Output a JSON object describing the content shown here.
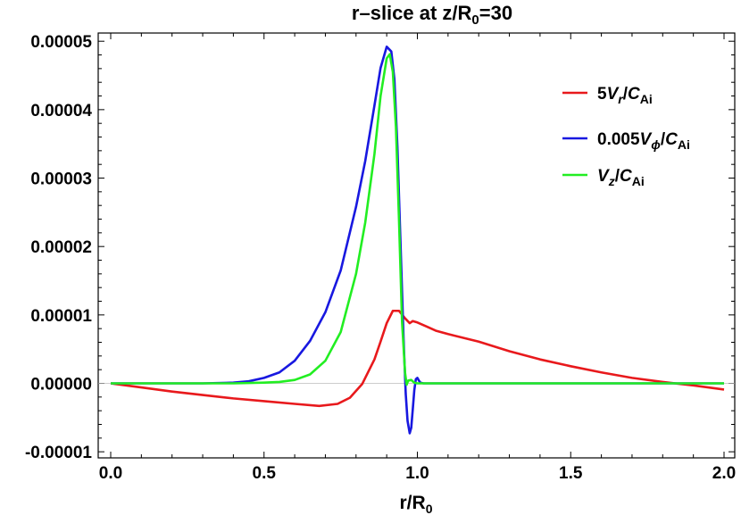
{
  "chart_data": {
    "type": "line",
    "title": "r–slice at z/R",
    "title_sub": "0",
    "title_suffix": "=30",
    "xlabel": "r/R",
    "xlabel_sub": "0",
    "ylabel": "",
    "xlim": [
      0.0,
      2.0
    ],
    "ylim": [
      -1e-05,
      5.2e-05
    ],
    "x_ticks": [
      0.0,
      0.5,
      1.0,
      1.5,
      2.0
    ],
    "x_tick_labels": [
      "0.0",
      "0.5",
      "1.0",
      "1.5",
      "2.0"
    ],
    "y_ticks": [
      -1e-05,
      0.0,
      1e-05,
      2e-05,
      3e-05,
      4e-05,
      5e-05
    ],
    "y_tick_labels": [
      "-0.00001",
      "0.00000",
      "0.00001",
      "0.00002",
      "0.00003",
      "0.00004",
      "0.00005"
    ],
    "grid": false,
    "legend_position": "top-right",
    "series": [
      {
        "name": "5V_r/C_Ai",
        "label_parts": {
          "coef": "5",
          "var": "V",
          "sub": "r",
          "div": "/",
          "den": "C",
          "den_sub": "Ai"
        },
        "color": "#e8191c",
        "x": [
          0.0,
          0.1,
          0.2,
          0.3,
          0.4,
          0.5,
          0.6,
          0.68,
          0.74,
          0.78,
          0.82,
          0.86,
          0.88,
          0.9,
          0.92,
          0.94,
          0.96,
          0.975,
          0.985,
          1.0,
          1.03,
          1.06,
          1.1,
          1.2,
          1.3,
          1.4,
          1.5,
          1.6,
          1.7,
          1.8,
          1.9,
          2.0
        ],
        "y": [
          0.0,
          -6e-07,
          -1.2e-06,
          -1.7e-06,
          -2.2e-06,
          -2.6e-06,
          -3e-06,
          -3.3e-06,
          -3e-06,
          -2.1e-06,
          -1e-07,
          3.5e-06,
          6.1e-06,
          8.8e-06,
          1.06e-05,
          1.06e-05,
          9.5e-06,
          8.8e-06,
          9.1e-06,
          8.9e-06,
          8.3e-06,
          7.7e-06,
          7.2e-06,
          6.1e-06,
          4.7e-06,
          3.5e-06,
          2.5e-06,
          1.6e-06,
          8e-07,
          2e-07,
          -3e-07,
          -9e-07
        ]
      },
      {
        "name": "0.005V_phi/C_Ai",
        "label_parts": {
          "coef": "0.005",
          "var": "V",
          "sub": "ϕ",
          "div": "/",
          "den": "C",
          "den_sub": "Ai"
        },
        "color": "#1818e0",
        "x": [
          0.0,
          0.2,
          0.3,
          0.4,
          0.45,
          0.5,
          0.55,
          0.6,
          0.65,
          0.7,
          0.75,
          0.8,
          0.83,
          0.86,
          0.88,
          0.9,
          0.915,
          0.925,
          0.935,
          0.945,
          0.955,
          0.962,
          0.968,
          0.975,
          0.98,
          0.985,
          0.99,
          0.995,
          1.0,
          1.005,
          1.01,
          1.02,
          1.04,
          1.1,
          1.5,
          2.0
        ],
        "y": [
          0.0,
          0.0,
          0.0,
          1e-07,
          3e-07,
          8e-07,
          1.6e-06,
          3.3e-06,
          6.2e-06,
          1.04e-05,
          1.65e-05,
          2.58e-05,
          3.25e-05,
          4.06e-05,
          4.61e-05,
          4.92e-05,
          4.85e-05,
          4.45e-05,
          3.45e-05,
          2.05e-05,
          6.5e-06,
          -1.5e-06,
          -5.5e-06,
          -7.3e-06,
          -6.5e-06,
          -3.8e-06,
          -1e-06,
          6e-07,
          8e-07,
          4e-07,
          1e-07,
          0.0,
          0.0,
          0.0,
          0.0,
          0.0
        ]
      },
      {
        "name": "V_z/C_Ai",
        "label_parts": {
          "coef": "",
          "var": "V",
          "sub": "z",
          "div": "/",
          "den": "C",
          "den_sub": "Ai"
        },
        "color": "#22ee22",
        "x": [
          0.0,
          0.3,
          0.4,
          0.5,
          0.55,
          0.6,
          0.65,
          0.7,
          0.75,
          0.8,
          0.83,
          0.86,
          0.88,
          0.9,
          0.91,
          0.92,
          0.93,
          0.94,
          0.95,
          0.96,
          0.965,
          0.97,
          0.98,
          0.99,
          1.0,
          1.1,
          1.5,
          2.0
        ],
        "y": [
          0.0,
          0.0,
          0.0,
          1e-07,
          2e-07,
          5e-07,
          1.3e-06,
          3.3e-06,
          7.5e-06,
          1.6e-05,
          2.35e-05,
          3.35e-05,
          4.2e-05,
          4.75e-05,
          4.81e-05,
          4.55e-05,
          3.75e-05,
          2.4e-05,
          9e-06,
          1.5e-06,
          -2e-07,
          4e-07,
          5e-07,
          1e-07,
          0.0,
          0.0,
          0.0,
          0.0
        ]
      }
    ]
  }
}
